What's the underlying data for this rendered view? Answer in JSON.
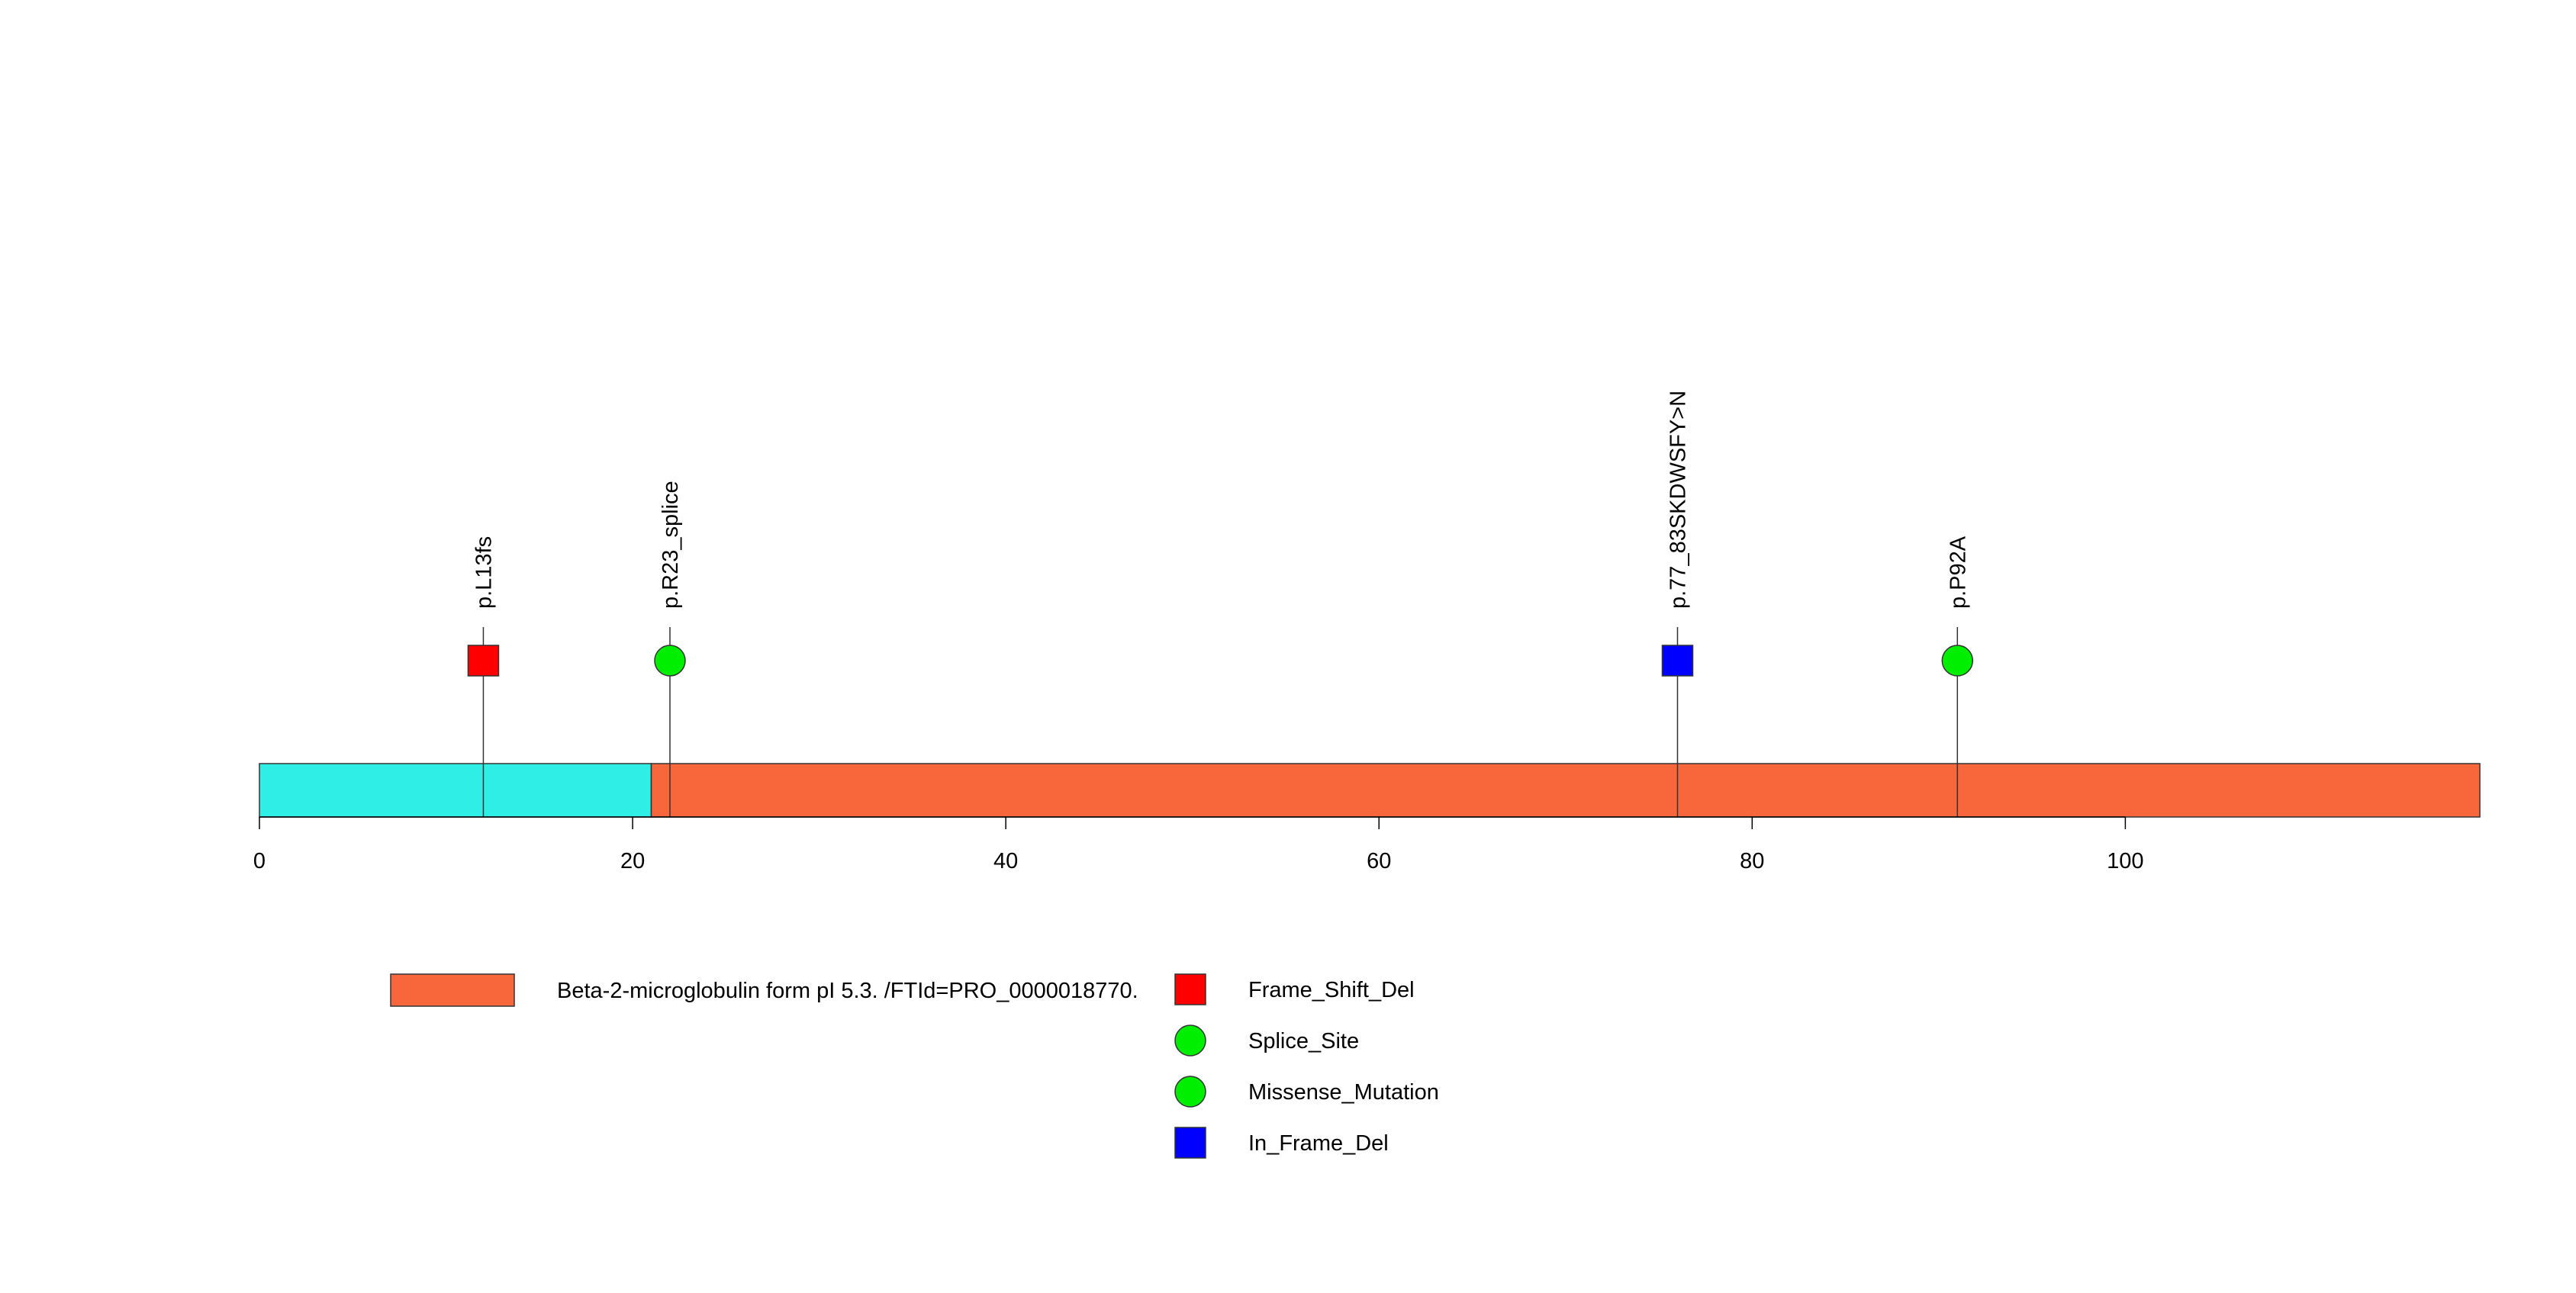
{
  "chart_data": {
    "type": "lollipop",
    "xlim": [
      0,
      119
    ],
    "x_ticks": [
      0,
      20,
      40,
      60,
      80,
      100
    ],
    "tick_labels": [
      "0",
      "20",
      "40",
      "60",
      "80",
      "100"
    ],
    "protein_length": 119,
    "domains": [
      {
        "start": 0,
        "end": 21,
        "color": "#2EEEE6",
        "label": ""
      },
      {
        "start": 21,
        "end": 119,
        "color": "#F8663C",
        "label": "Beta-2-microglobulin form pI 5.3. /FTId=PRO_0000018770."
      }
    ],
    "mutations": [
      {
        "position": 12,
        "label": "p.L13fs",
        "type": "Frame_Shift_Del",
        "shape": "square",
        "color": "#FF0000"
      },
      {
        "position": 22,
        "label": "p.R23_splice",
        "type": "Splice_Site",
        "shape": "circle",
        "color": "#00EE00"
      },
      {
        "position": 76,
        "label": "p.77_83SKDWSFY>N",
        "type": "In_Frame_Del",
        "shape": "square",
        "color": "#0000FF"
      },
      {
        "position": 91,
        "label": "p.P92A",
        "type": "Missense_Mutation",
        "shape": "circle",
        "color": "#00EE00"
      }
    ],
    "legend": {
      "domain_entry": {
        "color": "#F8663C",
        "label": "Beta-2-microglobulin form pI 5.3. /FTId=PRO_0000018770."
      },
      "mutation_entries": [
        {
          "label": "Frame_Shift_Del",
          "shape": "square",
          "color": "#FF0000"
        },
        {
          "label": "Splice_Site",
          "shape": "circle",
          "color": "#00EE00"
        },
        {
          "label": "Missense_Mutation",
          "shape": "circle",
          "color": "#00EE00"
        },
        {
          "label": "In_Frame_Del",
          "shape": "square",
          "color": "#0000FF"
        }
      ]
    }
  }
}
